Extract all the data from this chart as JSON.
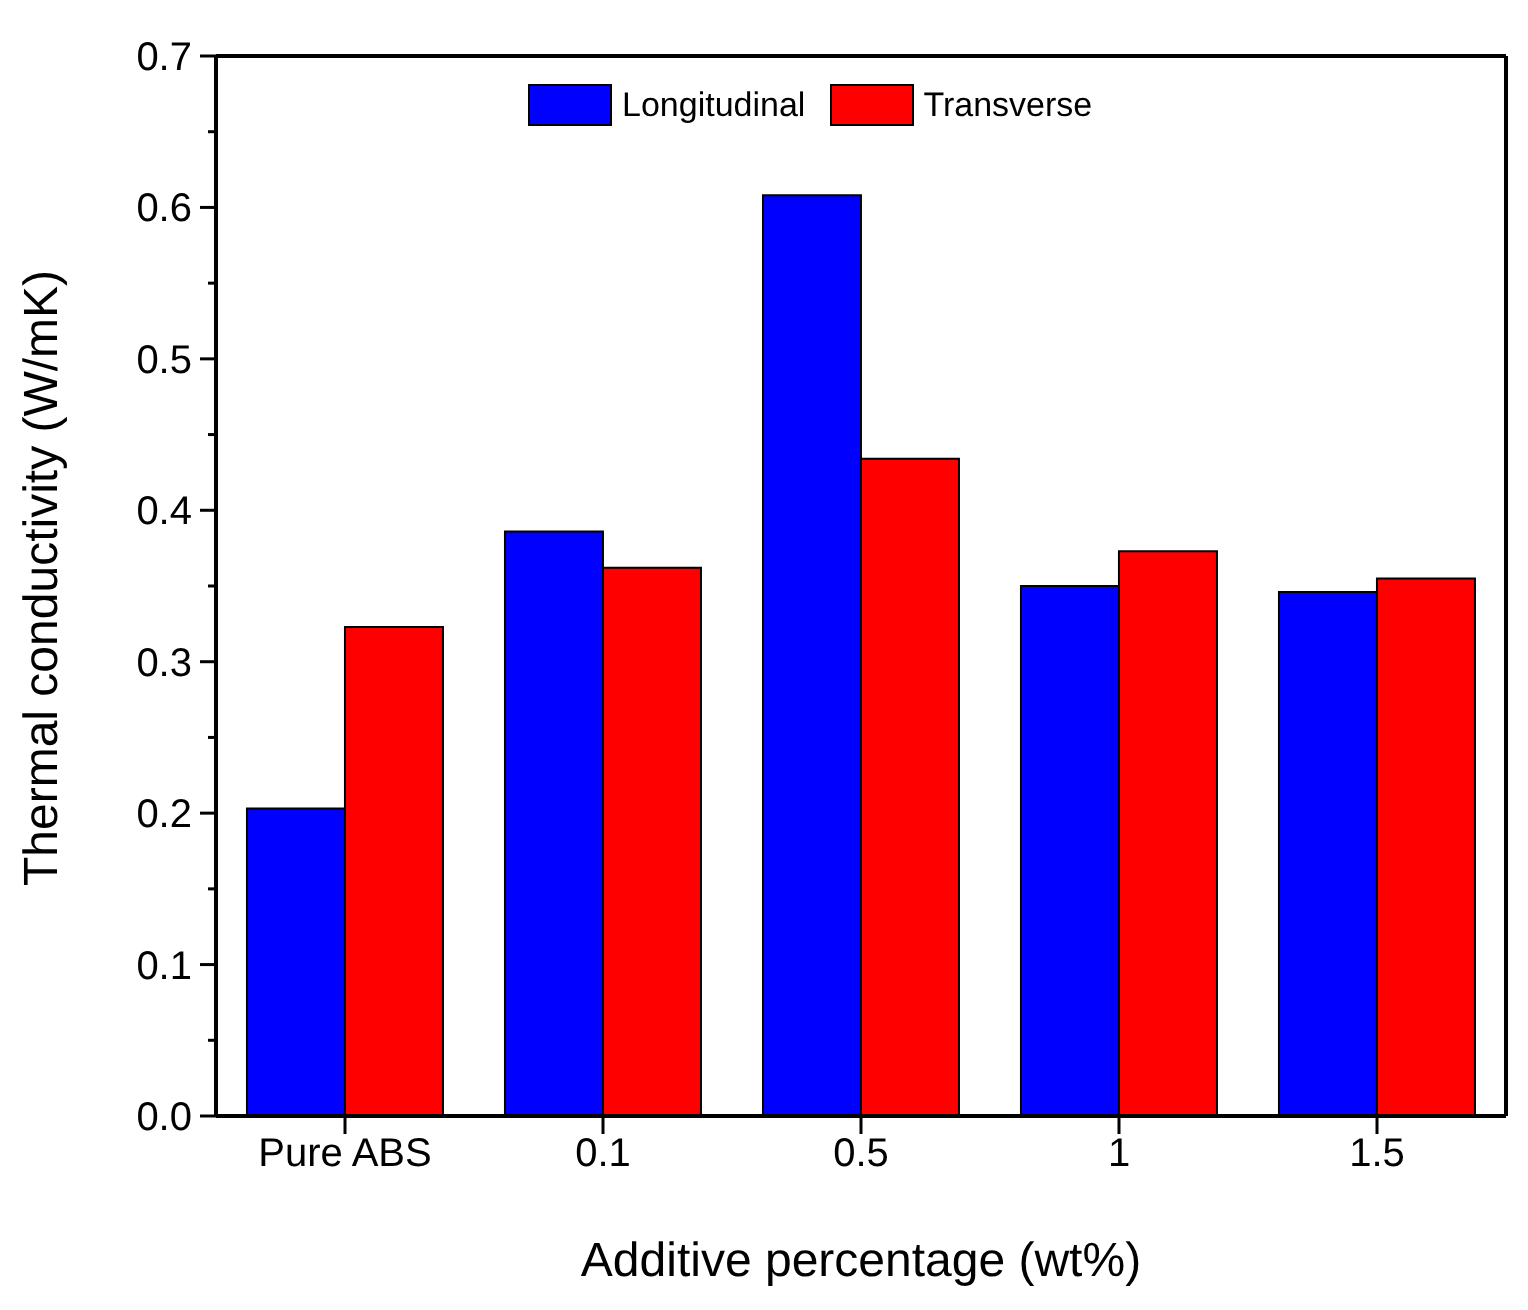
{
  "chart_data": {
    "type": "bar",
    "xlabel": "Additive percentage (wt%)",
    "ylabel": "Thermal conductivity (W/mK)",
    "categories": [
      "Pure ABS",
      "0.1",
      "0.5",
      "1",
      "1.5"
    ],
    "series": [
      {
        "name": "Longitudinal",
        "color": "#0000ff",
        "values": [
          0.203,
          0.386,
          0.608,
          0.35,
          0.346
        ]
      },
      {
        "name": "Transverse",
        "color": "#ff0000",
        "values": [
          0.323,
          0.362,
          0.434,
          0.373,
          0.355
        ]
      }
    ],
    "ylim": [
      0,
      0.7
    ],
    "yticks": [
      {
        "value": 0,
        "label": "0.0"
      },
      {
        "value": 0.05,
        "label": null
      },
      {
        "value": 0.1,
        "label": "0.1"
      },
      {
        "value": 0.15,
        "label": null
      },
      {
        "value": 0.2,
        "label": "0.2"
      },
      {
        "value": 0.25,
        "label": null
      },
      {
        "value": 0.3,
        "label": "0.3"
      },
      {
        "value": 0.35,
        "label": null
      },
      {
        "value": 0.4,
        "label": "0.4"
      },
      {
        "value": 0.45,
        "label": null
      },
      {
        "value": 0.5,
        "label": "0.5"
      },
      {
        "value": 0.55,
        "label": null
      },
      {
        "value": 0.6,
        "label": "0.6"
      },
      {
        "value": 0.65,
        "label": null
      },
      {
        "value": 0.7,
        "label": "0.7"
      }
    ],
    "legend": "top",
    "grid": false
  }
}
